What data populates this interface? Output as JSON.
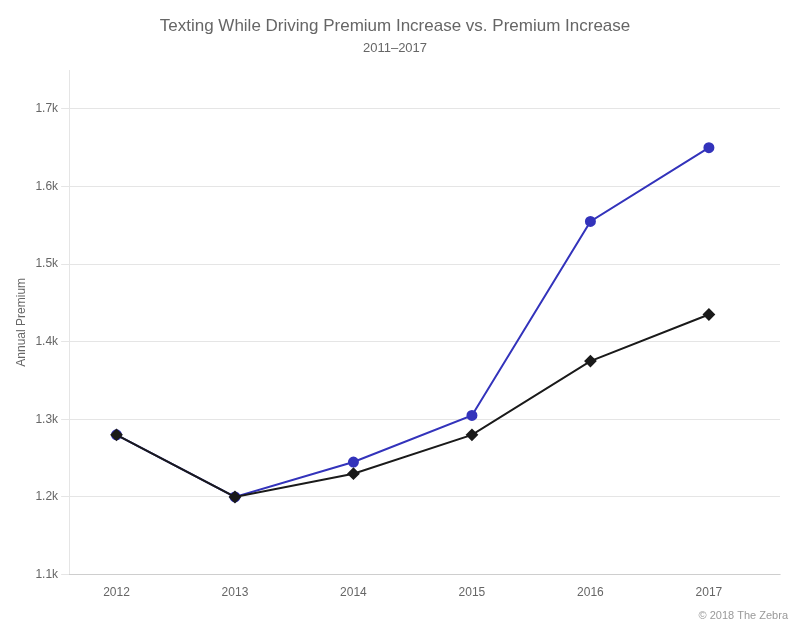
{
  "chart_data": {
    "type": "line",
    "title": "Texting While Driving Premium Increase vs. Premium Increase",
    "subtitle": "2011–2017",
    "ylabel": "Annual Premium",
    "annotation": "© 2018 The Zebra",
    "x": [
      2012,
      2013,
      2014,
      2015,
      2016,
      2017
    ],
    "xlim": [
      2011.6,
      2017.6
    ],
    "xticks": [
      2012,
      2013,
      2014,
      2015,
      2016,
      2017
    ],
    "ylim": [
      1100,
      1750
    ],
    "yticks": [
      {
        "value": 1100,
        "label": "1.1k"
      },
      {
        "value": 1200,
        "label": "1.2k"
      },
      {
        "value": 1300,
        "label": "1.3k"
      },
      {
        "value": 1400,
        "label": "1.4k"
      },
      {
        "value": 1500,
        "label": "1.5k"
      },
      {
        "value": 1600,
        "label": "1.6k"
      },
      {
        "value": 1700,
        "label": "1.7k"
      }
    ],
    "grid": "y",
    "series": [
      {
        "color": "#1a1a1a",
        "marker": "diamond",
        "values": [
          1280,
          1200,
          1230,
          1280,
          1375,
          1435
        ]
      },
      {
        "color": "#3333bb",
        "marker": "circle",
        "values": [
          1280,
          1200,
          1245,
          1305,
          1555,
          1650
        ]
      }
    ]
  }
}
